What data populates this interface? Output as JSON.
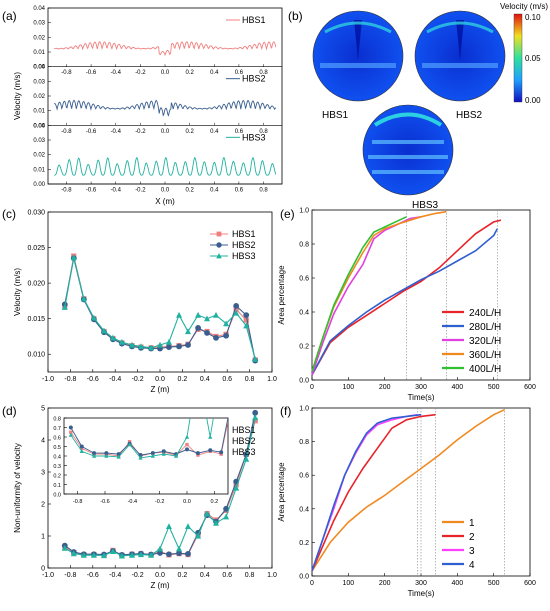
{
  "panels": {
    "a": "(a)",
    "b": "(b)",
    "c": "(c)",
    "d": "(d)",
    "e": "(e)",
    "f": "(f)"
  },
  "colors": {
    "HBS1": "#f08080",
    "HBS2": "#3a5f8f",
    "HBS3": "#20b2a0",
    "s240": "#e8232a",
    "s280": "#2f5fd0",
    "s320": "#e040e0",
    "s360": "#f08a20",
    "s400": "#30c030",
    "f1": "#f08a20",
    "f2": "#e8232a",
    "f3": "#ff40ff",
    "f4": "#2f5fd0"
  },
  "contour": {
    "title": "Velocity (m/s)",
    "ticks": [
      "0.10",
      "0.05",
      "0.00"
    ],
    "labels": [
      "HBS1",
      "HBS2",
      "HBS3"
    ]
  },
  "chart_data": [
    {
      "id": "a",
      "type": "line",
      "xlabel": "X (m)",
      "ylabel": "Velocity (m/s)",
      "xlim": [
        -0.95,
        0.95
      ],
      "ylim": [
        0,
        0.04
      ],
      "xticks": [
        "-0.8",
        "-0.6",
        "-0.4",
        "-0.2",
        "0.0",
        "0.2",
        "0.4",
        "0.6",
        "0.8"
      ],
      "yticks": [
        "0.00",
        "0.01",
        "0.02",
        "0.03",
        "0.04"
      ],
      "series": [
        {
          "name": "HBS1",
          "base": 0.012,
          "amp": 0.005,
          "dip_at_center": 0.004
        },
        {
          "name": "HBS2",
          "base": 0.011,
          "amp": 0.006,
          "dip_at_center": 0.005
        },
        {
          "name": "HBS3",
          "base": 0.006,
          "amp": 0.012,
          "dip_at_center": 0.0
        }
      ]
    },
    {
      "id": "c",
      "type": "line",
      "xlabel": "Z (m)",
      "ylabel": "Velocity (m/s)",
      "xlim": [
        -1.0,
        1.0
      ],
      "ylim": [
        0.0075,
        0.03
      ],
      "xticks": [
        "-1.0",
        "-0.8",
        "-0.6",
        "-0.4",
        "-0.2",
        "0.0",
        "0.2",
        "0.4",
        "0.6",
        "0.8",
        "1.0"
      ],
      "yticks": [
        "0.010",
        "0.015",
        "0.020",
        "0.025",
        "0.030"
      ],
      "legend": "top-right",
      "x": [
        -0.85,
        -0.77,
        -0.68,
        -0.59,
        -0.5,
        -0.42,
        -0.34,
        -0.25,
        -0.17,
        -0.08,
        0.0,
        0.08,
        0.17,
        0.25,
        0.34,
        0.42,
        0.5,
        0.59,
        0.68,
        0.77,
        0.85
      ],
      "series": [
        {
          "name": "HBS1",
          "values": [
            0.0168,
            0.0238,
            0.0178,
            0.015,
            0.0132,
            0.0122,
            0.0116,
            0.0112,
            0.011,
            0.0109,
            0.011,
            0.0111,
            0.0112,
            0.0114,
            0.0135,
            0.0132,
            0.0125,
            0.0128,
            0.0163,
            0.0148,
            0.0092
          ]
        },
        {
          "name": "HBS2",
          "values": [
            0.017,
            0.0235,
            0.0177,
            0.0149,
            0.0131,
            0.0121,
            0.0115,
            0.0111,
            0.0109,
            0.0108,
            0.0108,
            0.011,
            0.0111,
            0.0113,
            0.0137,
            0.013,
            0.0123,
            0.0126,
            0.0168,
            0.0155,
            0.0091
          ]
        },
        {
          "name": "HBS3",
          "values": [
            0.0166,
            0.0236,
            0.0178,
            0.0151,
            0.0133,
            0.0123,
            0.0117,
            0.0113,
            0.0111,
            0.0109,
            0.0113,
            0.0117,
            0.0155,
            0.0132,
            0.0155,
            0.015,
            0.0155,
            0.0143,
            0.0158,
            0.014,
            0.0093
          ]
        }
      ]
    },
    {
      "id": "d",
      "type": "line",
      "xlabel": "Z (m)",
      "ylabel": "Non-uniformity of velocity",
      "xlim": [
        -1.0,
        1.0
      ],
      "ylim": [
        0,
        5
      ],
      "xticks": [
        "-1.0",
        "-0.8",
        "-0.6",
        "-0.4",
        "-0.2",
        "0.0",
        "0.2",
        "0.4",
        "0.6",
        "0.8",
        "1.0"
      ],
      "yticks": [
        "0",
        "1",
        "2",
        "3",
        "4",
        "5"
      ],
      "legend": "top-right",
      "x": [
        -0.85,
        -0.77,
        -0.68,
        -0.59,
        -0.5,
        -0.42,
        -0.34,
        -0.25,
        -0.17,
        -0.08,
        0.0,
        0.08,
        0.17,
        0.25,
        0.34,
        0.42,
        0.5,
        0.59,
        0.68,
        0.77,
        0.85
      ],
      "series": [
        {
          "name": "HBS1",
          "values": [
            0.65,
            0.48,
            0.42,
            0.42,
            0.4,
            0.55,
            0.4,
            0.43,
            0.44,
            0.41,
            0.52,
            0.41,
            0.45,
            0.42,
            1.05,
            1.7,
            1.5,
            1.8,
            2.6,
            3.55,
            4.6
          ]
        },
        {
          "name": "HBS2",
          "values": [
            0.7,
            0.5,
            0.43,
            0.43,
            0.42,
            0.53,
            0.41,
            0.43,
            0.45,
            0.42,
            0.47,
            0.43,
            0.46,
            0.44,
            1.1,
            1.65,
            1.45,
            1.85,
            2.7,
            3.55,
            4.85
          ]
        },
        {
          "name": "HBS3",
          "values": [
            0.62,
            0.45,
            0.4,
            0.4,
            0.39,
            0.52,
            0.38,
            0.4,
            0.42,
            0.4,
            0.6,
            1.3,
            0.6,
            1.3,
            1.0,
            1.7,
            1.4,
            1.6,
            2.5,
            3.4,
            4.7
          ]
        }
      ],
      "inset": {
        "xlim": [
          -0.9,
          0.3
        ],
        "ylim": [
          0.0,
          0.8
        ],
        "xticks": [
          "-0.8",
          "-0.6",
          "-0.4",
          "-0.2",
          "0.0",
          "0.2"
        ],
        "yticks": [
          "0.0",
          "0.1",
          "0.2",
          "0.3",
          "0.4",
          "0.5",
          "0.6",
          "0.7",
          "0.8"
        ]
      }
    },
    {
      "id": "e",
      "type": "line",
      "xlabel": "Time(s)",
      "ylabel": "Area percentage",
      "xlim": [
        0,
        600
      ],
      "ylim": [
        0,
        1.0
      ],
      "xticks": [
        "0",
        "100",
        "200",
        "300",
        "400",
        "500",
        "600"
      ],
      "yticks": [
        "0.0",
        "0.2",
        "0.4",
        "0.6",
        "0.8",
        "1.0"
      ],
      "legend": "lower-right",
      "series": [
        {
          "name": "240L/H",
          "x": [
            0,
            50,
            100,
            150,
            200,
            250,
            300,
            350,
            400,
            450,
            500,
            520
          ],
          "values": [
            0.03,
            0.22,
            0.31,
            0.38,
            0.45,
            0.52,
            0.58,
            0.66,
            0.76,
            0.86,
            0.93,
            0.94
          ]
        },
        {
          "name": "280L/H",
          "x": [
            0,
            50,
            100,
            150,
            200,
            250,
            300,
            350,
            400,
            450,
            500,
            510
          ],
          "values": [
            0.03,
            0.23,
            0.32,
            0.4,
            0.47,
            0.53,
            0.59,
            0.64,
            0.7,
            0.76,
            0.85,
            0.89
          ]
        },
        {
          "name": "320L/H",
          "x": [
            0,
            30,
            60,
            100,
            140,
            170,
            200,
            240,
            270,
            300
          ],
          "values": [
            0.03,
            0.22,
            0.39,
            0.55,
            0.68,
            0.83,
            0.88,
            0.92,
            0.95,
            0.96
          ]
        },
        {
          "name": "360L/H",
          "x": [
            0,
            30,
            60,
            100,
            140,
            170,
            200,
            240,
            270,
            300,
            340,
            370
          ],
          "values": [
            0.05,
            0.25,
            0.43,
            0.6,
            0.75,
            0.85,
            0.89,
            0.92,
            0.94,
            0.96,
            0.98,
            0.99
          ]
        },
        {
          "name": "400L/H",
          "x": [
            0,
            30,
            60,
            100,
            140,
            170,
            200,
            240,
            260
          ],
          "values": [
            0.05,
            0.25,
            0.44,
            0.62,
            0.78,
            0.87,
            0.9,
            0.94,
            0.96
          ]
        }
      ],
      "vlines": [
        260,
        370,
        510
      ]
    },
    {
      "id": "f",
      "type": "line",
      "xlabel": "Time(s)",
      "ylabel": "Area percentage",
      "xlim": [
        0,
        600
      ],
      "ylim": [
        0,
        1.0
      ],
      "xticks": [
        "0",
        "100",
        "200",
        "300",
        "400",
        "500",
        "600"
      ],
      "yticks": [
        "0.0",
        "0.2",
        "0.4",
        "0.6",
        "0.8",
        "1.0"
      ],
      "legend": "lower-right",
      "series": [
        {
          "name": "1",
          "x": [
            0,
            50,
            100,
            150,
            200,
            250,
            300,
            350,
            400,
            450,
            500,
            530
          ],
          "values": [
            0.03,
            0.2,
            0.32,
            0.41,
            0.48,
            0.56,
            0.64,
            0.72,
            0.81,
            0.89,
            0.96,
            0.99
          ]
        },
        {
          "name": "2",
          "x": [
            0,
            30,
            60,
            100,
            140,
            180,
            220,
            260,
            300,
            340
          ],
          "values": [
            0.03,
            0.18,
            0.33,
            0.5,
            0.64,
            0.76,
            0.88,
            0.93,
            0.95,
            0.96
          ]
        },
        {
          "name": "3",
          "x": [
            0,
            30,
            60,
            90,
            120,
            150,
            180,
            220,
            260,
            290
          ],
          "values": [
            0.03,
            0.22,
            0.4,
            0.6,
            0.73,
            0.84,
            0.9,
            0.93,
            0.95,
            0.96
          ]
        },
        {
          "name": "4",
          "x": [
            0,
            30,
            60,
            90,
            120,
            150,
            180,
            220,
            260,
            300
          ],
          "values": [
            0.03,
            0.22,
            0.42,
            0.6,
            0.74,
            0.85,
            0.91,
            0.94,
            0.95,
            0.96
          ]
        }
      ],
      "vlines": [
        290,
        300,
        340,
        530
      ]
    }
  ]
}
